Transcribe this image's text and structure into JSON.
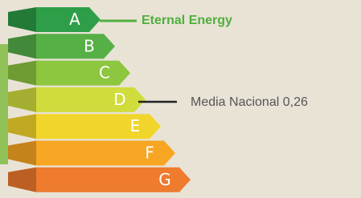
{
  "ratings": [
    "A",
    "B",
    "C",
    "D",
    "E",
    "F",
    "G"
  ],
  "callouts": [
    {
      "label": "Eternal Energy"
    },
    {
      "label": "Media Nacional 0,26"
    }
  ]
}
